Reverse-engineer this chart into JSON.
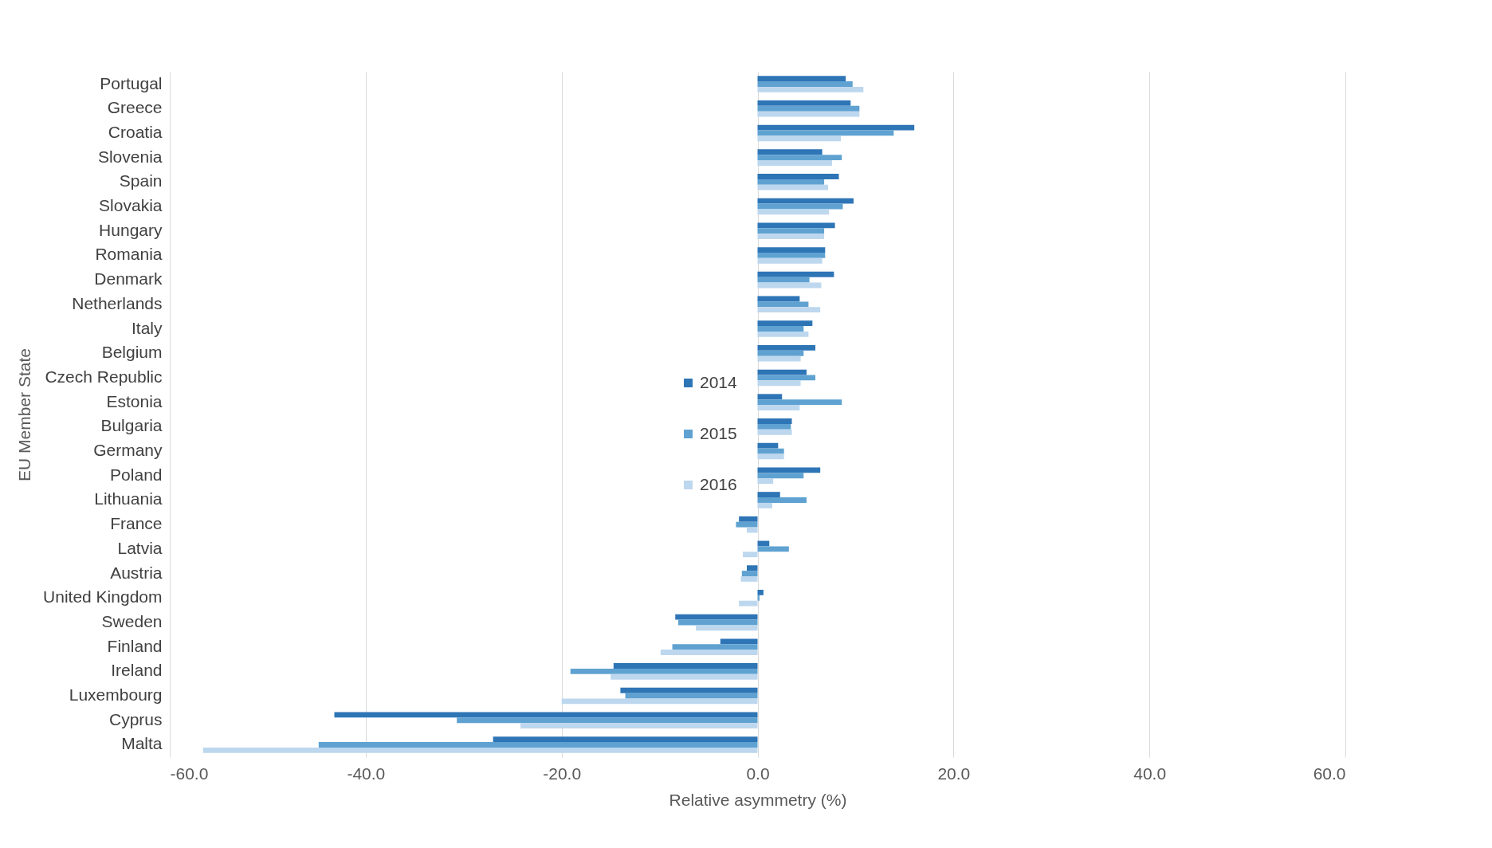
{
  "chart_data": {
    "type": "bar",
    "orientation": "horizontal",
    "xlabel": "Relative asymmetry (%)",
    "ylabel": "EU Member State",
    "categories": [
      "Portugal",
      "Greece",
      "Croatia",
      "Slovenia",
      "Spain",
      "Slovakia",
      "Hungary",
      "Romania",
      "Denmark",
      "Netherlands",
      "Italy",
      "Belgium",
      "Czech Republic",
      "Estonia",
      "Bulgaria",
      "Germany",
      "Poland",
      "Lithuania",
      "France",
      "Latvia",
      "Austria",
      "United Kingdom",
      "Sweden",
      "Finland",
      "Ireland",
      "Luxembourg",
      "Cyprus",
      "Malta"
    ],
    "series": [
      {
        "name": "2014",
        "color": "#2e75b6",
        "values": [
          9.0,
          9.5,
          16.0,
          6.6,
          8.3,
          9.8,
          7.9,
          6.9,
          7.8,
          4.3,
          5.6,
          5.9,
          5.0,
          2.5,
          3.5,
          2.1,
          6.4,
          2.3,
          -1.9,
          1.2,
          -1.1,
          0.6,
          -8.4,
          -3.8,
          -14.7,
          -14.0,
          -43.2,
          -27.0
        ]
      },
      {
        "name": "2015",
        "color": "#5fa2d1",
        "values": [
          9.7,
          10.4,
          13.9,
          8.6,
          6.8,
          8.7,
          6.8,
          6.9,
          5.3,
          5.2,
          4.7,
          4.7,
          5.9,
          8.6,
          3.4,
          2.7,
          4.7,
          5.0,
          -2.2,
          3.2,
          -1.6,
          0.2,
          -8.1,
          -8.7,
          -19.1,
          -13.5,
          -30.7,
          -44.8
        ]
      },
      {
        "name": "2016",
        "color": "#bdd7ee",
        "values": [
          10.8,
          10.4,
          8.5,
          7.6,
          7.2,
          7.3,
          6.8,
          6.6,
          6.5,
          6.4,
          5.2,
          4.4,
          4.4,
          4.3,
          3.5,
          2.7,
          1.6,
          1.5,
          -1.1,
          -1.5,
          -1.7,
          -1.9,
          -6.3,
          -9.9,
          -15.0,
          -20.0,
          -24.2,
          -56.6
        ]
      }
    ],
    "xlim": [
      -60,
      60
    ],
    "xticks": [
      {
        "value": -60,
        "label": "-60.0"
      },
      {
        "value": -40,
        "label": "-40.0"
      },
      {
        "value": -20,
        "label": "-20.0"
      },
      {
        "value": 0,
        "label": "0.0"
      },
      {
        "value": 20,
        "label": "20.0"
      },
      {
        "value": 40,
        "label": "40.0"
      },
      {
        "value": 60,
        "label": "60.0"
      }
    ],
    "grid": "x",
    "legend": "left"
  }
}
